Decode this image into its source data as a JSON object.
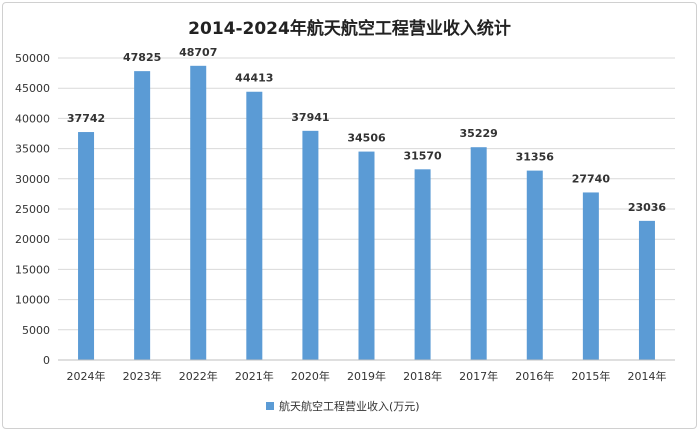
{
  "chart_data": {
    "type": "bar",
    "title": "2014-2024年航天航空工程营业收入统计",
    "categories": [
      "2024年",
      "2023年",
      "2022年",
      "2021年",
      "2020年",
      "2019年",
      "2018年",
      "2017年",
      "2016年",
      "2015年",
      "2014年"
    ],
    "series": [
      {
        "name": "航天航空工程营业收入(万元)",
        "values": [
          37742,
          47825,
          48707,
          44413,
          37941,
          34506,
          31570,
          35229,
          31356,
          27740,
          23036
        ]
      }
    ],
    "yticks": [
      "0",
      "5000",
      "10000",
      "15000",
      "20000",
      "25000",
      "30000",
      "35000",
      "40000",
      "45000",
      "50000"
    ],
    "ylim": [
      0,
      50000
    ],
    "grid": true,
    "legend_position": "bottom",
    "bar_color": "#5b9bd5",
    "gridline_color": "#d9d9d9"
  }
}
